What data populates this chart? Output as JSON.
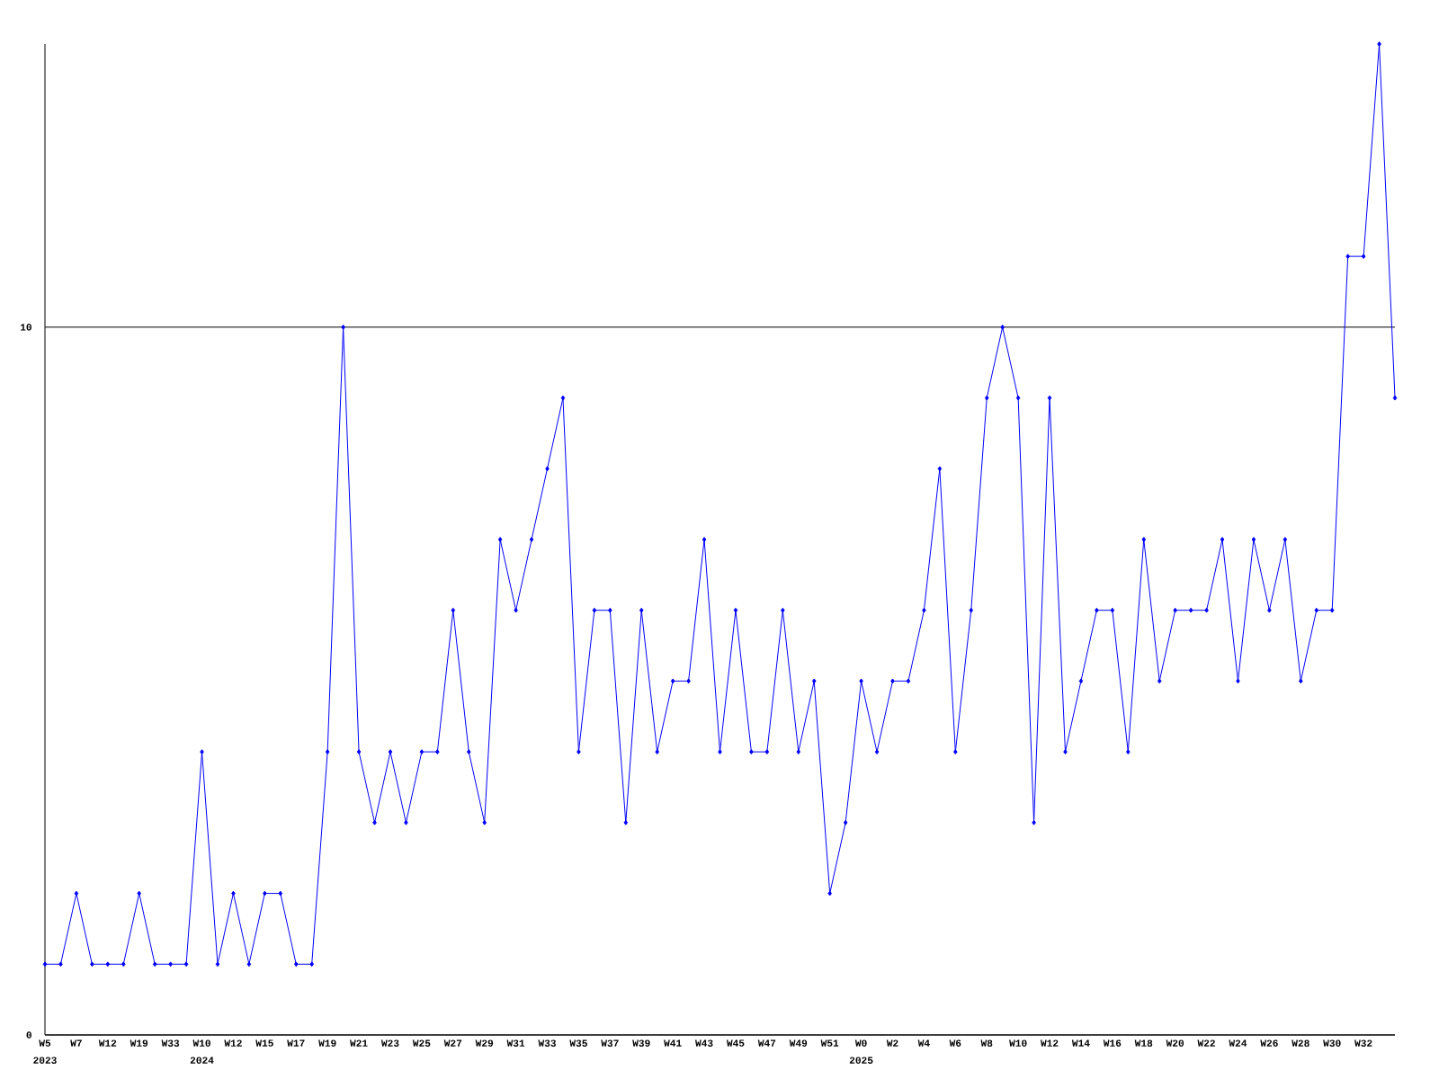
{
  "chart_data": {
    "type": "line",
    "categories": [
      "W5",
      null,
      "W7",
      null,
      "W12",
      null,
      "W19",
      null,
      "W33",
      null,
      "W10",
      null,
      "W12",
      null,
      "W15",
      null,
      "W17",
      null,
      "W19",
      null,
      "W21",
      null,
      "W23",
      null,
      "W25",
      null,
      "W27",
      null,
      "W29",
      null,
      "W31",
      null,
      "W33",
      null,
      "W35",
      null,
      "W37",
      null,
      "W39",
      null,
      "W41",
      null,
      "W43",
      null,
      "W45",
      null,
      "W47",
      null,
      "W49",
      null,
      "W51",
      null,
      "W0",
      null,
      "W2",
      null,
      "W4",
      null,
      "W6",
      null,
      "W8",
      null,
      "W10",
      null,
      "W12",
      null,
      "W14",
      null,
      "W16",
      null,
      "W18",
      null,
      "W20",
      null,
      "W22",
      null,
      "W24",
      null,
      "W26",
      null,
      "W28",
      null,
      "W30",
      null,
      "W32",
      null,
      null
    ],
    "values": [
      1,
      1,
      2,
      1,
      1,
      1,
      2,
      1,
      1,
      1,
      4,
      1,
      2,
      1,
      2,
      2,
      1,
      1,
      4,
      10,
      4,
      3,
      4,
      3,
      4,
      4,
      6,
      4,
      3,
      7,
      6,
      7,
      8,
      9,
      4,
      6,
      6,
      3,
      6,
      4,
      5,
      5,
      7,
      4,
      6,
      4,
      4,
      6,
      4,
      5,
      2,
      3,
      5,
      4,
      5,
      5,
      6,
      8,
      4,
      6,
      9,
      10,
      9,
      3,
      9,
      4,
      5,
      6,
      6,
      4,
      7,
      5,
      6,
      6,
      6,
      7,
      5,
      7,
      6,
      7,
      5,
      6,
      6,
      11,
      11,
      14,
      9
    ],
    "color": "#0000ff",
    "marker": "diamond",
    "line_style": "solid",
    "ylim": [
      0,
      14
    ],
    "yticks": [
      0,
      10
    ],
    "grid": "y",
    "annotations": [
      "2023",
      "2024",
      "2025"
    ]
  }
}
